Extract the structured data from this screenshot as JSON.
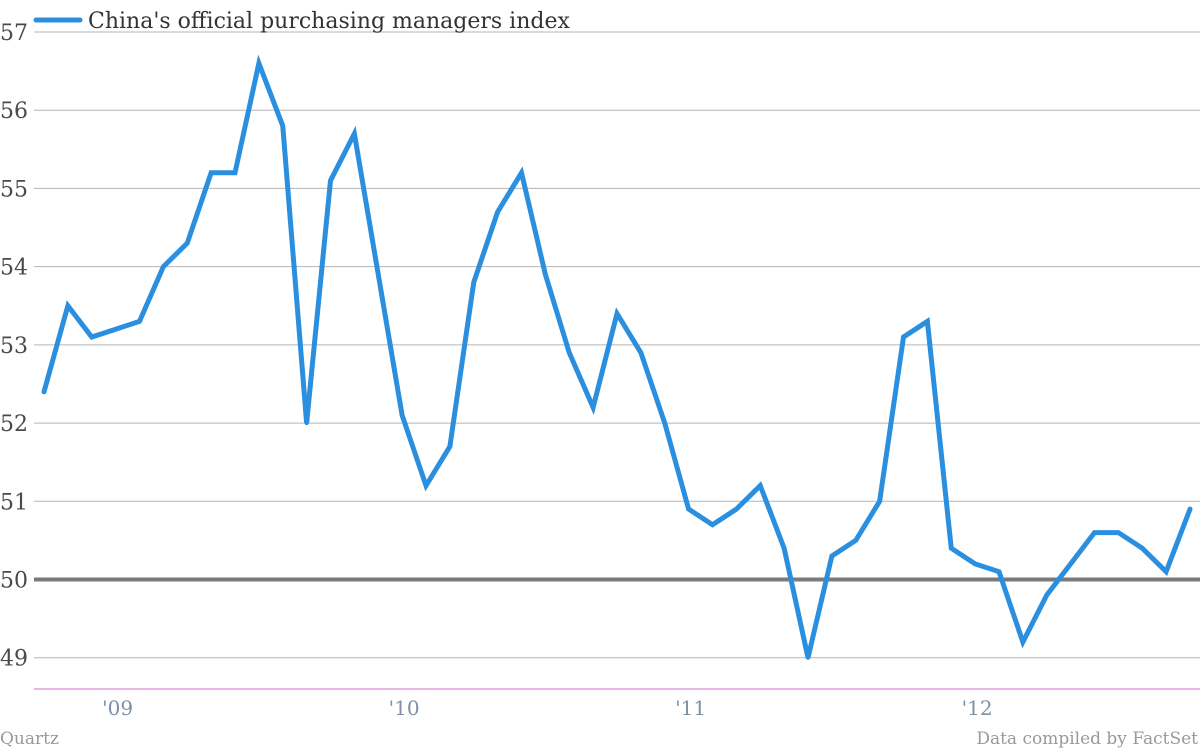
{
  "chart_data": {
    "type": "line",
    "legend": "top-left",
    "grid": true,
    "ylim": [
      48.6,
      57
    ],
    "yticks": [
      49,
      50,
      51,
      52,
      53,
      54,
      55,
      56,
      57
    ],
    "xlim": [
      0,
      49
    ],
    "xtick_labels": [
      {
        "x": 3,
        "label": "'09"
      },
      {
        "x": 15,
        "label": "'10"
      },
      {
        "x": 27,
        "label": "'11"
      },
      {
        "x": 39,
        "label": "'12"
      }
    ],
    "reference_line": 50,
    "series": [
      {
        "name": "China's official purchasing managers index",
        "color": "#2b8fe0",
        "values": [
          52.4,
          53.5,
          53.1,
          53.2,
          53.3,
          54.0,
          54.3,
          55.2,
          55.2,
          56.6,
          55.8,
          52.0,
          55.1,
          55.7,
          53.9,
          52.1,
          51.2,
          51.7,
          53.8,
          54.7,
          55.2,
          53.9,
          52.9,
          52.2,
          53.4,
          52.9,
          52.0,
          50.9,
          50.7,
          50.9,
          51.2,
          50.4,
          49.0,
          50.3,
          50.5,
          51.0,
          53.1,
          53.3,
          50.4,
          50.2,
          50.1,
          49.2,
          49.8,
          50.2,
          50.6,
          50.6,
          50.4,
          50.1,
          50.9
        ]
      }
    ]
  },
  "footer": {
    "source_left": "Quartz",
    "source_right": "Data compiled by FactSet"
  },
  "colors": {
    "grid": "#b5b5b5",
    "reference": "#7a7a7a",
    "axis_baseline": "#d36fcf",
    "line": "#2b8fe0"
  }
}
